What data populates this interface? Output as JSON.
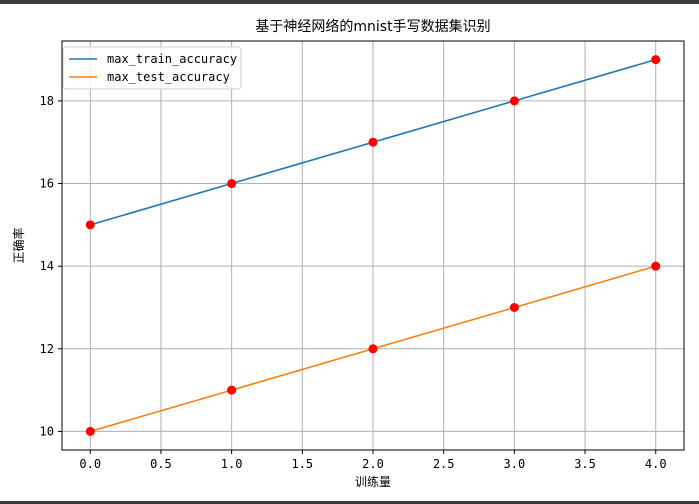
{
  "chart_data": {
    "type": "line",
    "title": "基于神经网络的mnist手写数据集识别",
    "xlabel": "训练量",
    "ylabel": "正确率",
    "xlim": [
      -0.2,
      4.2
    ],
    "ylim": [
      9.55,
      19.45
    ],
    "xticks": [
      0.0,
      0.5,
      1.0,
      1.5,
      2.0,
      2.5,
      3.0,
      3.5,
      4.0
    ],
    "xtick_labels": [
      "0.0",
      "0.5",
      "1.0",
      "1.5",
      "2.0",
      "2.5",
      "3.0",
      "3.5",
      "4.0"
    ],
    "yticks": [
      10,
      12,
      14,
      16,
      18
    ],
    "ytick_labels": [
      "10",
      "12",
      "14",
      "16",
      "18"
    ],
    "grid": true,
    "legend_position": "top-left",
    "x": [
      0,
      1,
      2,
      3,
      4
    ],
    "series": [
      {
        "name": "max_train_accuracy",
        "values": [
          15,
          16,
          17,
          18,
          19
        ],
        "color": "#1f77b4"
      },
      {
        "name": "max_test_accuracy",
        "values": [
          10,
          11,
          12,
          13,
          14
        ],
        "color": "#ff7f0e"
      }
    ],
    "marker_color": "#ff0000"
  }
}
